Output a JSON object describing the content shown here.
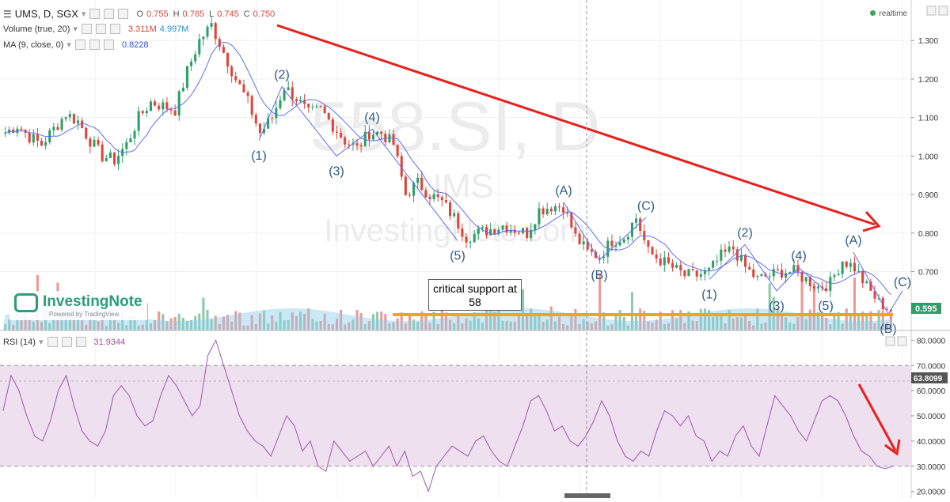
{
  "header": {
    "symbol": "UMS, D, SGX",
    "ohlc": [
      {
        "key": "O",
        "value": "0.755"
      },
      {
        "key": "H",
        "value": "0.765"
      },
      {
        "key": "L",
        "value": "0.745"
      },
      {
        "key": "C",
        "value": "0.750"
      }
    ],
    "volume_label": "Volume (true, 20)",
    "volume_value": "3.311M",
    "volume_ma_value": "4.997M",
    "ma_label": "MA (9, close, 0)",
    "ma_value": "0.8228",
    "realtime": "realtime"
  },
  "watermark": {
    "symbol": "558.SI, D",
    "name": "UMS",
    "site": "InvestingNote.com"
  },
  "logo": {
    "name": "InvestingNote",
    "powered": "Powered by TradingView"
  },
  "callout": {
    "line1": "critical support at",
    "line2": "58"
  },
  "wave_labels": [
    "(1)",
    "(2)",
    "(3)",
    "(4)",
    "(5)",
    "(A)",
    "(B)",
    "(C)",
    "(1)",
    "(2)",
    "(3)",
    "(4)",
    "(5)",
    "(A)",
    "(B)",
    "(C)"
  ],
  "price_axis": {
    "ticks": [
      "1.300",
      "1.200",
      "1.100",
      "1.000",
      "0.900",
      "0.800",
      "0.700"
    ],
    "last_price_label": "0.595"
  },
  "rsi_axis": {
    "ticks": [
      "80.0000",
      "70.0000",
      "60.0000",
      "50.0000",
      "40.0000",
      "30.0000",
      "20.0000"
    ],
    "highlight_label": "63.8099"
  },
  "rsi_legend": {
    "label": "RSI (14)",
    "value": "31.9344"
  },
  "colors": {
    "up": "#2e9e6a",
    "down": "#e0443a",
    "ma": "#5b6ff0",
    "trend": "#e8201a",
    "support": "#f7a21b",
    "rsi": "#9b56b0",
    "rsi_band": "#efe0ef",
    "vol_area": "#8fcbe8"
  },
  "chart_data": [
    {
      "type": "candlestick",
      "title": "UMS, D, SGX",
      "y_range": [
        0.58,
        1.36
      ],
      "y_ticks": [
        1.3,
        1.2,
        1.1,
        1.0,
        0.9,
        0.8,
        0.7
      ],
      "close_path": [
        1.06,
        1.08,
        1.05,
        1.03,
        1.07,
        1.11,
        1.09,
        1.04,
        1.0,
        0.99,
        1.03,
        1.1,
        1.14,
        1.13,
        1.12,
        1.22,
        1.3,
        1.34,
        1.27,
        1.2,
        1.14,
        1.06,
        1.1,
        1.18,
        1.15,
        1.11,
        1.12,
        1.08,
        1.04,
        1.02,
        1.06,
        1.06,
        1.03,
        0.9,
        0.93,
        0.9,
        0.88,
        0.84,
        0.79,
        0.8,
        0.81,
        0.82,
        0.81,
        0.8,
        0.86,
        0.87,
        0.87,
        0.79,
        0.75,
        0.74,
        0.78,
        0.79,
        0.84,
        0.75,
        0.73,
        0.71,
        0.69,
        0.69,
        0.7,
        0.74,
        0.76,
        0.71,
        0.68,
        0.69,
        0.7,
        0.7,
        0.68,
        0.66,
        0.67,
        0.73,
        0.71,
        0.66,
        0.62,
        0.6
      ],
      "ma_label": "MA (9, close, 0)",
      "ma_last": 0.8228,
      "last_price": 0.595,
      "support_level": 0.58,
      "wave_points": [
        {
          "label": "(1)",
          "value": 1.04
        },
        {
          "label": "(2)",
          "value": 1.18
        },
        {
          "label": "(3)",
          "value": 1.0
        },
        {
          "label": "(4)",
          "value": 1.07
        },
        {
          "label": "(5)",
          "value": 0.78
        },
        {
          "label": "(A)",
          "value": 0.88
        },
        {
          "label": "(B)",
          "value": 0.73
        },
        {
          "label": "(C)",
          "value": 0.84
        },
        {
          "label": "(1)",
          "value": 0.68
        },
        {
          "label": "(2)",
          "value": 0.77
        },
        {
          "label": "(3)",
          "value": 0.65
        },
        {
          "label": "(4)",
          "value": 0.71
        },
        {
          "label": "(5)",
          "value": 0.65
        },
        {
          "label": "(A)",
          "value": 0.75
        },
        {
          "label": "(B)",
          "value": 0.59
        },
        {
          "label": "(C)",
          "value": 0.65
        }
      ]
    },
    {
      "type": "bar",
      "title": "Volume (true, 20)",
      "last_value": "3.311M",
      "ma_value": "4.997M"
    },
    {
      "type": "line",
      "title": "RSI (14)",
      "y_range": [
        18,
        82
      ],
      "y_ticks": [
        80,
        70,
        60,
        50,
        40,
        30,
        20
      ],
      "band": [
        30,
        70
      ],
      "highlight": 63.8099,
      "values": [
        52,
        66,
        60,
        50,
        42,
        40,
        48,
        60,
        66,
        54,
        44,
        40,
        38,
        44,
        58,
        62,
        58,
        50,
        46,
        48,
        58,
        66,
        62,
        56,
        50,
        54,
        74,
        80,
        70,
        60,
        50,
        44,
        40,
        38,
        34,
        42,
        50,
        46,
        36,
        40,
        30,
        28,
        40,
        36,
        32,
        34,
        36,
        30,
        34,
        38,
        30,
        36,
        26,
        28,
        20,
        30,
        34,
        38,
        36,
        34,
        40,
        42,
        36,
        32,
        30,
        38,
        46,
        56,
        58,
        52,
        44,
        46,
        40,
        38,
        42,
        48,
        56,
        50,
        40,
        34,
        32,
        36,
        34,
        44,
        52,
        50,
        46,
        50,
        42,
        40,
        32,
        36,
        34,
        42,
        46,
        38,
        34,
        46,
        58,
        54,
        50,
        44,
        40,
        48,
        56,
        58,
        56,
        50,
        42,
        36,
        34,
        30,
        29,
        30
      ]
    }
  ]
}
